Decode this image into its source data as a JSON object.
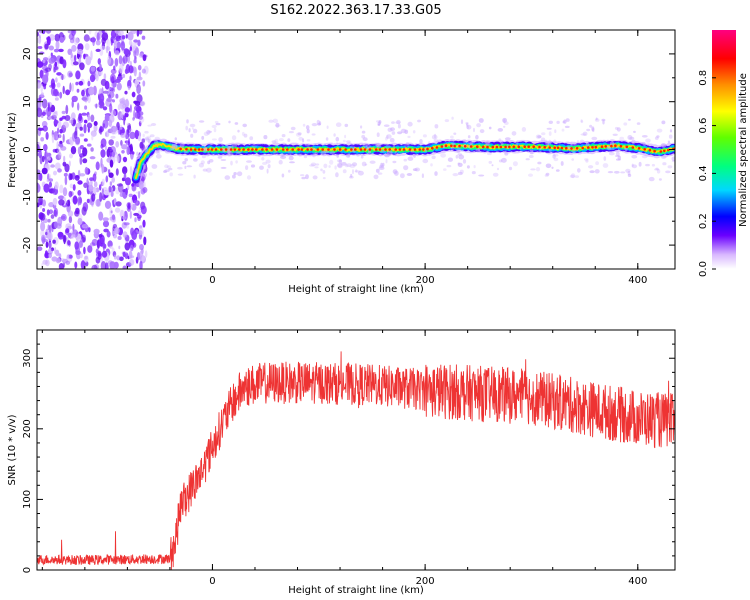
{
  "title": "S162.2022.363.17.33.G05",
  "chart_data": [
    {
      "type": "heatmap",
      "xlabel": "Height of straight line (km)",
      "ylabel": "Frequency (Hz)",
      "xlim": [
        -165,
        435
      ],
      "ylim": [
        -25,
        25
      ],
      "xticks": [
        0,
        200,
        400
      ],
      "yticks": [
        -20,
        -10,
        0,
        10,
        20
      ],
      "colorbar": {
        "label": "Normalized spectral amplitude",
        "range": [
          0,
          1
        ],
        "ticks": [
          0.0,
          0.2,
          0.4,
          0.6,
          0.8
        ]
      },
      "signal_track": {
        "x": [
          -72,
          -68,
          -62,
          -55,
          -48,
          -35,
          -20,
          0,
          50,
          100,
          150,
          200,
          220,
          260,
          300,
          340,
          380,
          400,
          420,
          435
        ],
        "frequency": [
          -6,
          -3,
          -1,
          0.8,
          1.0,
          0.2,
          0.0,
          0.0,
          0.0,
          0.0,
          0.0,
          0.0,
          0.8,
          0.5,
          0.6,
          0.2,
          0.8,
          0.3,
          -0.5,
          0.2
        ]
      },
      "noise_region_x": [
        -165,
        -68
      ]
    },
    {
      "type": "line",
      "xlabel": "Height of straight line (km)",
      "ylabel": "SNR (10 * v/v)",
      "xlim": [
        -165,
        435
      ],
      "ylim": [
        0,
        340
      ],
      "xticks": [
        0,
        200,
        400
      ],
      "yticks": [
        0,
        100,
        200,
        300
      ],
      "color": "#ee3333",
      "x": [
        -165,
        -120,
        -80,
        -40,
        -35,
        -30,
        -20,
        -10,
        0,
        10,
        20,
        30,
        50,
        100,
        150,
        200,
        250,
        300,
        350,
        400,
        435
      ],
      "y": [
        15,
        14,
        15,
        16,
        40,
        90,
        115,
        140,
        175,
        210,
        240,
        260,
        265,
        265,
        262,
        255,
        250,
        245,
        230,
        215,
        210
      ]
    }
  ]
}
